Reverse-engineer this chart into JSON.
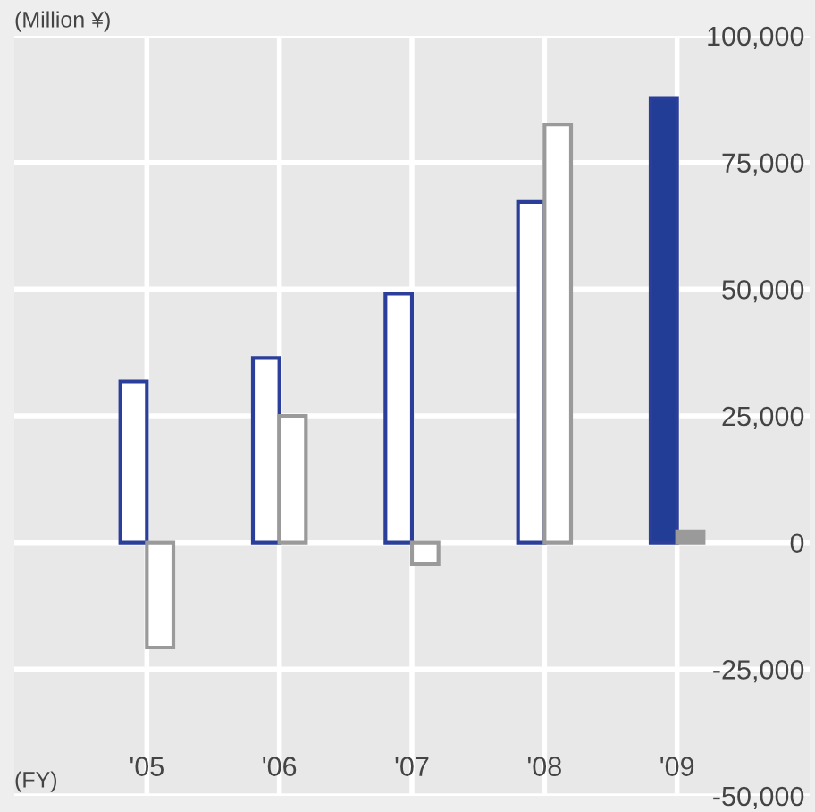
{
  "chart_data": {
    "type": "bar",
    "xlabel": "(FY)",
    "ylabel": "(Million ¥)",
    "categories": [
      "'05",
      "'06",
      "'07",
      "'08",
      "'09"
    ],
    "series": [
      {
        "color": "#2b3f9a",
        "colors": [
          "#ffffff",
          "#ffffff",
          "#ffffff",
          "#ffffff",
          "#223d96"
        ],
        "values": [
          31800,
          36400,
          49100,
          67200,
          87700
        ]
      },
      {
        "color": "#9a9a9a",
        "colors": [
          "#ffffff",
          "#ffffff",
          "#ffffff",
          "#ffffff",
          "#9a9a9a"
        ],
        "values": [
          -20700,
          25000,
          -4300,
          82500,
          2100
        ]
      }
    ],
    "ylim": [
      -50000,
      100000
    ],
    "yticks": [
      {
        "value": -50000,
        "label": "-50,000"
      },
      {
        "value": -25000,
        "label": "-25,000"
      },
      0,
      {
        "value": 25000,
        "label": "25,000"
      },
      {
        "value": 50000,
        "label": "50,000"
      },
      {
        "value": 75000,
        "label": "75,000"
      },
      {
        "value": 100000,
        "label": "100,000"
      }
    ],
    "grid": true
  }
}
